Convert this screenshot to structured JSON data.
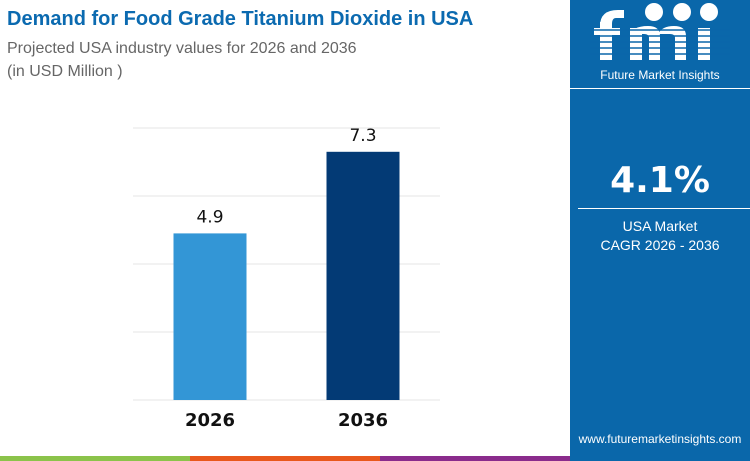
{
  "header": {
    "title": "Demand for Food Grade Titanium Dioxide in USA",
    "subtitle": "Projected USA industry values for 2026 and 2036",
    "unit": "(in USD Million )"
  },
  "sidebar": {
    "logo_text": "Future Market Insights",
    "cagr_value": "4.1%",
    "cagr_label1": "USA Market",
    "cagr_label2": "CAGR 2026 - 2036",
    "website": "www.futuremarketinsights.com",
    "background": "#0a67aa"
  },
  "footer_stripe_colors": [
    "#8bc34a",
    "#e8581c",
    "#8a2b8c"
  ],
  "chart_data": {
    "type": "bar",
    "categories": [
      "2026",
      "2036"
    ],
    "values": [
      4.9,
      7.3
    ],
    "data_labels": [
      "4.9",
      "7.3"
    ],
    "colors": [
      "#3396d6",
      "#033a75"
    ],
    "ylim": [
      0,
      8
    ],
    "grid": true,
    "xlabel": "",
    "ylabel": ""
  }
}
